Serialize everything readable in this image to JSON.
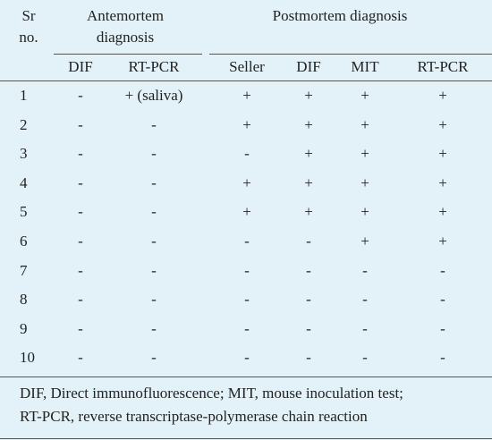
{
  "header": {
    "sr": "Sr no.",
    "antemortem": "Antemortem diagnosis",
    "postmortem": "Postmortem diagnosis"
  },
  "subheader": [
    "DIF",
    "RT-PCR",
    "Seller",
    "DIF",
    "MIT",
    "RT-PCR"
  ],
  "rows": [
    [
      "1",
      "-",
      "+ (saliva)",
      "+",
      "+",
      "+",
      "+"
    ],
    [
      "2",
      "-",
      "-",
      "+",
      "+",
      "+",
      "+"
    ],
    [
      "3",
      "-",
      "-",
      "-",
      "+",
      "+",
      "+"
    ],
    [
      "4",
      "-",
      "-",
      "+",
      "+",
      "+",
      "+"
    ],
    [
      "5",
      "-",
      "-",
      "+",
      "+",
      "+",
      "+"
    ],
    [
      "6",
      "-",
      "-",
      "-",
      "-",
      "+",
      "+"
    ],
    [
      "7",
      "-",
      "-",
      "-",
      "-",
      "-",
      "-"
    ],
    [
      "8",
      "-",
      "-",
      "-",
      "-",
      "-",
      "-"
    ],
    [
      "9",
      "-",
      "-",
      "-",
      "-",
      "-",
      "-"
    ],
    [
      "10",
      "-",
      "-",
      "-",
      "-",
      "-",
      "-"
    ]
  ],
  "footnote": [
    "DIF, Direct immunofluorescence; MIT, mouse inoculation test;",
    "RT-PCR, reverse transcriptase-polymerase chain reaction"
  ]
}
